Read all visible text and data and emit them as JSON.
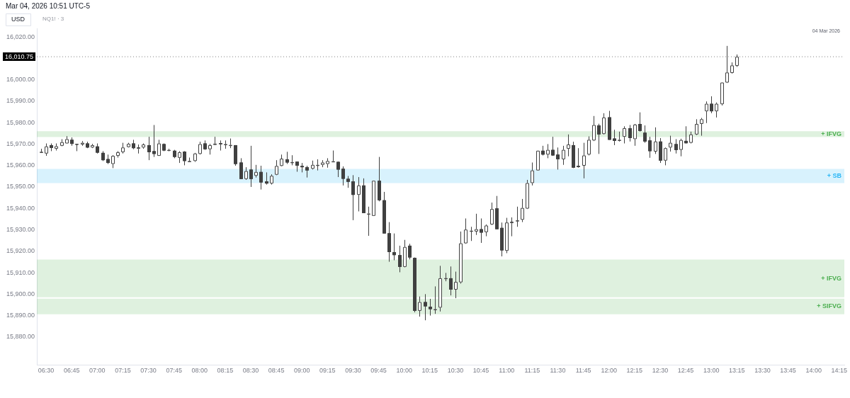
{
  "chart_data": {
    "type": "candlestick",
    "title": "NQ1! · 3",
    "subtitle": "Mar 04, 2026 10:51 UTC-5",
    "color": "#404040",
    "x": [
      6.45,
      6.5,
      6.55,
      6.6,
      6.65,
      6.7,
      6.75,
      6.8,
      6.85,
      6.9,
      6.95,
      7.0,
      7.05,
      7.1,
      7.15,
      7.2,
      7.25,
      7.3,
      7.35,
      7.4,
      7.45,
      7.5,
      7.55,
      7.6,
      7.65,
      7.7,
      7.75,
      7.8,
      7.85,
      7.9,
      7.95,
      8.0,
      8.05,
      8.1,
      8.15,
      8.2,
      8.25,
      8.3,
      8.35,
      8.4,
      8.45,
      8.5,
      8.55,
      8.6,
      8.65,
      8.7,
      8.75,
      8.8,
      8.85,
      8.9,
      8.95,
      9.0,
      9.05,
      9.1,
      9.15,
      9.2,
      9.25,
      9.3,
      9.35,
      9.4,
      9.45,
      9.5,
      9.55,
      9.6,
      9.65,
      9.7,
      9.75,
      9.8,
      9.85,
      9.9,
      9.95,
      10.0,
      10.05,
      10.1,
      10.15,
      10.2,
      10.25,
      10.3,
      10.35,
      10.4,
      10.45,
      10.5,
      10.55,
      10.6,
      10.65,
      10.7,
      10.75,
      10.8,
      10.85,
      10.9,
      10.95,
      11.0,
      11.05,
      11.1,
      11.15,
      11.2,
      11.25,
      11.3,
      11.35,
      11.4,
      11.45,
      11.5,
      11.55,
      11.6,
      11.65,
      11.7,
      11.75,
      11.8,
      11.85,
      11.9,
      11.95,
      12.0,
      12.05,
      12.1,
      12.15,
      12.2,
      12.25,
      12.3,
      12.35,
      12.4,
      12.45,
      12.5,
      12.55,
      12.6,
      12.65,
      12.7,
      12.75,
      12.8,
      12.85,
      12.9,
      12.95,
      13.0,
      13.05,
      13.1,
      13.15,
      13.2,
      13.25
    ],
    "ohlc": [
      [
        15966.4,
        15967.8,
        15965.9,
        15966.4
      ],
      [
        15965.6,
        15970.3,
        15964.5,
        15968.9
      ],
      [
        15969.5,
        15970.3,
        15966.7,
        15968.2
      ],
      [
        15967.8,
        15970.3,
        15967.0,
        15969.0
      ],
      [
        15969.2,
        15972.3,
        15969.0,
        15970.9
      ],
      [
        15970.3,
        15973.7,
        15970.3,
        15972.3
      ],
      [
        15972.0,
        15973.1,
        15969.2,
        15970.1
      ],
      [
        15970.1,
        15970.1,
        15966.7,
        15970.1
      ],
      [
        15969.8,
        15971.4,
        15969.2,
        15970.6
      ],
      [
        15970.3,
        15971.1,
        15968.1,
        15968.4
      ],
      [
        15968.4,
        15970.1,
        15968.1,
        15969.5
      ],
      [
        15968.9,
        15970.3,
        15965.6,
        15966.0
      ],
      [
        15965.9,
        15966.7,
        15962.1,
        15962.5
      ],
      [
        15963.0,
        15965.1,
        15960.7,
        15961.2
      ],
      [
        15960.7,
        15964.8,
        15958.8,
        15964.5
      ],
      [
        15964.5,
        15966.7,
        15963.7,
        15966.2
      ],
      [
        15966.2,
        15970.6,
        15965.6,
        15968.4
      ],
      [
        15968.6,
        15970.6,
        15968.4,
        15970.1
      ],
      [
        15970.3,
        15972.0,
        15967.6,
        15968.1
      ],
      [
        15967.8,
        15969.8,
        15965.6,
        15968.5
      ],
      [
        15968.4,
        15970.3,
        15967.8,
        15969.8
      ],
      [
        15969.5,
        15973.4,
        15962.5,
        15966.2
      ],
      [
        15966.7,
        15978.9,
        15964.0,
        15965.4
      ],
      [
        15964.5,
        15972.0,
        15964.5,
        15970.3
      ],
      [
        15970.0,
        15970.3,
        15966.7,
        15967.0
      ],
      [
        15967.3,
        15967.8,
        15966.7,
        15967.3
      ],
      [
        15966.9,
        15967.3,
        15963.4,
        15964.0
      ],
      [
        15963.6,
        15966.7,
        15961.2,
        15966.2
      ],
      [
        15966.5,
        15966.7,
        15960.1,
        15962.1
      ],
      [
        15962.1,
        15963.7,
        15961.8,
        15962.1
      ],
      [
        15962.1,
        15965.9,
        15961.7,
        15965.6
      ],
      [
        15965.4,
        15971.1,
        15965.1,
        15970.0
      ],
      [
        15970.3,
        15971.7,
        15967.3,
        15967.6
      ],
      [
        15967.6,
        15970.1,
        15965.1,
        15969.5
      ],
      [
        15969.6,
        15973.4,
        15969.5,
        15970.2
      ],
      [
        15970.4,
        15971.7,
        15967.0,
        15970.0
      ],
      [
        15970.0,
        15971.7,
        15967.8,
        15970.0
      ],
      [
        15969.6,
        15972.6,
        15968.1,
        15969.6
      ],
      [
        15969.5,
        15969.5,
        15959.9,
        15960.7
      ],
      [
        15961.4,
        15963.4,
        15953.7,
        15953.7
      ],
      [
        15953.7,
        15959.2,
        15953.3,
        15957.4
      ],
      [
        15958.1,
        15969.2,
        15950.0,
        15953.7
      ],
      [
        15955.2,
        15960.3,
        15954.4,
        15957.0
      ],
      [
        15957.0,
        15959.9,
        15948.8,
        15952.1
      ],
      [
        15952.6,
        15956.8,
        15951.1,
        15951.6
      ],
      [
        15951.6,
        15955.9,
        15951.1,
        15955.2
      ],
      [
        15955.7,
        15962.5,
        15955.5,
        15959.8
      ],
      [
        15959.8,
        15965.1,
        15959.6,
        15963.2
      ],
      [
        15962.9,
        15966.4,
        15960.7,
        15961.4
      ],
      [
        15961.6,
        15964.8,
        15960.1,
        15961.6
      ],
      [
        15961.8,
        15961.8,
        15957.1,
        15959.9
      ],
      [
        15959.8,
        15961.2,
        15956.8,
        15959.2
      ],
      [
        15959.2,
        15959.9,
        15954.4,
        15957.7
      ],
      [
        15958.5,
        15962.3,
        15958.1,
        15960.3
      ],
      [
        15960.3,
        15962.9,
        15957.7,
        15960.3
      ],
      [
        15960.3,
        15962.5,
        15959.2,
        15961.4
      ],
      [
        15960.7,
        15963.4,
        15959.0,
        15962.1
      ],
      [
        15962.0,
        15967.0,
        15961.8,
        15962.0
      ],
      [
        15961.7,
        15961.8,
        15954.6,
        15958.1
      ],
      [
        15958.5,
        15959.6,
        15950.7,
        15953.8
      ],
      [
        15953.8,
        15955.1,
        15949.6,
        15952.4
      ],
      [
        15952.6,
        15955.5,
        15934.5,
        15946.3
      ],
      [
        15946.3,
        15954.6,
        15938.6,
        15950.7
      ],
      [
        15950.7,
        15954.0,
        15937.8,
        15937.8
      ],
      [
        15937.6,
        15940.8,
        15927.2,
        15937.6
      ],
      [
        15936.5,
        15952.9,
        15936.5,
        15952.9
      ],
      [
        15952.9,
        15964.0,
        15943.3,
        15943.8
      ],
      [
        15943.8,
        15947.7,
        15928.3,
        15928.3
      ],
      [
        15928.4,
        15933.6,
        15915.1,
        15919.6
      ],
      [
        15919.6,
        15928.3,
        15915.8,
        15918.2
      ],
      [
        15918.2,
        15922.6,
        15910.2,
        15912.7
      ],
      [
        15912.7,
        15925.3,
        15912.5,
        15922.0
      ],
      [
        15922.6,
        15923.5,
        15916.2,
        15917.1
      ],
      [
        15916.9,
        15917.1,
        15891.5,
        15892.2
      ],
      [
        15892.2,
        15898.9,
        15889.5,
        15896.3
      ],
      [
        15896.3,
        15900.0,
        15887.8,
        15894.3
      ],
      [
        15894.1,
        15897.8,
        15890.0,
        15893.0
      ],
      [
        15893.0,
        15903.6,
        15890.8,
        15893.0
      ],
      [
        15893.7,
        15913.2,
        15891.9,
        15907.4
      ],
      [
        15907.5,
        15909.9,
        15906.0,
        15907.5
      ],
      [
        15907.4,
        15912.9,
        15899.4,
        15902.1
      ],
      [
        15902.1,
        15910.5,
        15898.1,
        15905.7
      ],
      [
        15905.5,
        15929.2,
        15904.9,
        15923.7
      ],
      [
        15923.7,
        15935.3,
        15923.5,
        15930.1
      ],
      [
        15929.6,
        15931.4,
        15924.8,
        15929.6
      ],
      [
        15929.2,
        15937.5,
        15927.6,
        15930.3
      ],
      [
        15930.3,
        15935.3,
        15923.9,
        15928.7
      ],
      [
        15928.9,
        15932.5,
        15927.0,
        15932.0
      ],
      [
        15932.5,
        15942.7,
        15932.3,
        15939.7
      ],
      [
        15940.0,
        15945.8,
        15930.3,
        15930.3
      ],
      [
        15930.9,
        15933.4,
        15917.6,
        15920.4
      ],
      [
        15920.2,
        15935.6,
        15919.1,
        15933.4
      ],
      [
        15933.1,
        15935.8,
        15927.0,
        15933.8
      ],
      [
        15934.4,
        15940.8,
        15931.4,
        15934.4
      ],
      [
        15934.7,
        15944.4,
        15933.6,
        15940.2
      ],
      [
        15939.9,
        15953.3,
        15939.7,
        15951.8
      ],
      [
        15951.8,
        15961.4,
        15950.7,
        15957.7
      ],
      [
        15957.7,
        15966.9,
        15957.7,
        15966.9
      ],
      [
        15966.9,
        15969.2,
        15964.7,
        15965.1
      ],
      [
        15965.1,
        15970.0,
        15963.4,
        15967.3
      ],
      [
        15967.3,
        15973.4,
        15964.5,
        15964.7
      ],
      [
        15965.1,
        15968.4,
        15958.1,
        15962.9
      ],
      [
        15962.9,
        15969.2,
        15960.3,
        15967.3
      ],
      [
        15967.8,
        15974.5,
        15964.3,
        15969.8
      ],
      [
        15969.5,
        15971.1,
        15958.8,
        15959.0
      ],
      [
        15959.8,
        15968.1,
        15959.0,
        15959.3
      ],
      [
        15959.9,
        15970.6,
        15954.0,
        15964.7
      ],
      [
        15965.1,
        15973.6,
        15964.7,
        15972.0
      ],
      [
        15971.7,
        15983.1,
        15971.4,
        15978.9
      ],
      [
        15978.7,
        15979.5,
        15965.4,
        15974.5
      ],
      [
        15974.7,
        15984.4,
        15974.5,
        15982.4
      ],
      [
        15982.5,
        15985.5,
        15972.0,
        15972.0
      ],
      [
        15972.6,
        15976.7,
        15969.5,
        15971.5
      ],
      [
        15972.0,
        15975.8,
        15971.2,
        15972.0
      ],
      [
        15973.4,
        15978.3,
        15970.3,
        15977.4
      ],
      [
        15977.4,
        15978.9,
        15971.2,
        15972.8
      ],
      [
        15972.3,
        15979.4,
        15969.2,
        15979.1
      ],
      [
        15979.4,
        15984.8,
        15975.8,
        15976.1
      ],
      [
        15975.3,
        15978.7,
        15970.6,
        15971.2
      ],
      [
        15971.7,
        15973.4,
        15963.6,
        15966.7
      ],
      [
        15966.5,
        15977.8,
        15965.4,
        15971.2
      ],
      [
        15971.2,
        15972.8,
        15961.2,
        15962.3
      ],
      [
        15962.3,
        15968.4,
        15960.1,
        15968.1
      ],
      [
        15968.4,
        15973.9,
        15966.5,
        15970.6
      ],
      [
        15970.0,
        15972.3,
        15965.6,
        15967.2
      ],
      [
        15967.3,
        15972.5,
        15964.3,
        15971.9
      ],
      [
        15971.5,
        15978.3,
        15970.3,
        15970.4
      ],
      [
        15970.6,
        15975.8,
        15970.3,
        15974.5
      ],
      [
        15974.5,
        15981.6,
        15974.2,
        15979.4
      ],
      [
        15979.4,
        15982.2,
        15973.9,
        15981.6
      ],
      [
        15985.3,
        15989.9,
        15979.8,
        15988.8
      ],
      [
        15988.8,
        15992.3,
        15984.4,
        15985.3
      ],
      [
        15985.3,
        15989.4,
        15982.4,
        15988.8
      ],
      [
        15988.6,
        15998.7,
        15988.0,
        15998.7
      ],
      [
        15998.7,
        16015.8,
        15998.5,
        16003.4
      ],
      [
        16003.2,
        16008.1,
        16002.9,
        16006.7
      ],
      [
        16006.5,
        16011.8,
        16006.0,
        16010.75
      ]
    ],
    "xlim": [
      6.41,
      14.3
    ],
    "ylim": [
      15867,
      16024
    ],
    "xticks": [
      {
        "value": 6.5,
        "label": "06:30"
      },
      {
        "value": 6.75,
        "label": "06:45"
      },
      {
        "value": 7,
        "label": "07:00"
      },
      {
        "value": 7.25,
        "label": "07:15"
      },
      {
        "value": 7.5,
        "label": "07:30"
      },
      {
        "value": 7.75,
        "label": "07:45"
      },
      {
        "value": 8,
        "label": "08:00"
      },
      {
        "value": 8.25,
        "label": "08:15"
      },
      {
        "value": 8.5,
        "label": "08:30"
      },
      {
        "value": 8.75,
        "label": "08:45"
      },
      {
        "value": 9,
        "label": "09:00"
      },
      {
        "value": 9.25,
        "label": "09:15"
      },
      {
        "value": 9.5,
        "label": "09:30"
      },
      {
        "value": 9.75,
        "label": "09:45"
      },
      {
        "value": 10,
        "label": "10:00"
      },
      {
        "value": 10.25,
        "label": "10:15"
      },
      {
        "value": 10.5,
        "label": "10:30"
      },
      {
        "value": 10.75,
        "label": "10:45"
      },
      {
        "value": 11,
        "label": "11:00"
      },
      {
        "value": 11.25,
        "label": "11:15"
      },
      {
        "value": 11.5,
        "label": "11:30"
      },
      {
        "value": 11.75,
        "label": "11:45"
      },
      {
        "value": 12,
        "label": "12:00"
      },
      {
        "value": 12.25,
        "label": "12:15"
      },
      {
        "value": 12.5,
        "label": "12:30"
      },
      {
        "value": 12.75,
        "label": "12:45"
      },
      {
        "value": 13,
        "label": "13:00"
      },
      {
        "value": 13.25,
        "label": "13:15"
      },
      {
        "value": 13.5,
        "label": "13:30"
      },
      {
        "value": 13.75,
        "label": "13:45"
      },
      {
        "value": 14,
        "label": "14:00"
      },
      {
        "value": 14.25,
        "label": "14:15"
      }
    ],
    "yticks": [
      {
        "value": 15880,
        "label": "15,880.00"
      },
      {
        "value": 15890,
        "label": "15,890.00"
      },
      {
        "value": 15900,
        "label": "15,900.00"
      },
      {
        "value": 15910,
        "label": "15,910.00"
      },
      {
        "value": 15920,
        "label": "15,920.00"
      },
      {
        "value": 15930,
        "label": "15,930.00"
      },
      {
        "value": 15940,
        "label": "15,940.00"
      },
      {
        "value": 15950,
        "label": "15,950.00"
      },
      {
        "value": 15960,
        "label": "15,960.00"
      },
      {
        "value": 15970,
        "label": "15,970.00"
      },
      {
        "value": 15980,
        "label": "15,980.00"
      },
      {
        "value": 15990,
        "label": "15,990.00"
      },
      {
        "value": 16000,
        "label": "16,000.00"
      },
      {
        "value": 16020,
        "label": "16,020.00"
      }
    ],
    "ref_lines": [
      {
        "axis": "y",
        "value": 16010.75,
        "label": "16,010.75",
        "color": "#000000",
        "line_style": "dotted"
      }
    ],
    "bands": [
      {
        "axis": "y",
        "from": 15890.6,
        "to": 15897.9,
        "label": "+ SIFVG",
        "color": "#4caf50"
      },
      {
        "axis": "y",
        "from": 15898.5,
        "to": 15916.1,
        "label": "+ IFVG",
        "color": "#4caf50"
      },
      {
        "axis": "y",
        "from": 15951.8,
        "to": 15958.4,
        "label": "+ SB",
        "color": "#29b6f6"
      },
      {
        "axis": "y",
        "from": 15973.3,
        "to": 15976.0,
        "label": "+ IFVG",
        "color": "#4caf50"
      }
    ],
    "colors": [
      "#ffffff",
      "#ffffff",
      "#404040",
      "#ffffff",
      "#ffffff",
      "#ffffff",
      "#404040",
      "#ffffff",
      "#ffffff",
      "#404040",
      "#ffffff",
      "#404040",
      "#404040",
      "#404040",
      "#ffffff",
      "#ffffff",
      "#ffffff",
      "#ffffff",
      "#404040",
      "#ffffff",
      "#ffffff",
      "#404040",
      "#404040",
      "#ffffff",
      "#404040",
      "#ffffff",
      "#404040",
      "#ffffff",
      "#404040",
      "#ffffff",
      "#ffffff",
      "#ffffff",
      "#404040",
      "#ffffff",
      "#ffffff",
      "#404040",
      "#ffffff",
      "#ffffff",
      "#404040",
      "#404040",
      "#ffffff",
      "#404040",
      "#ffffff",
      "#404040",
      "#404040",
      "#ffffff",
      "#ffffff",
      "#ffffff",
      "#404040",
      "#ffffff",
      "#404040",
      "#404040",
      "#404040",
      "#ffffff",
      "#ffffff",
      "#ffffff",
      "#ffffff",
      "#ffffff",
      "#404040",
      "#404040",
      "#404040",
      "#404040",
      "#ffffff",
      "#404040",
      "#ffffff",
      "#ffffff",
      "#404040",
      "#404040",
      "#404040",
      "#404040",
      "#404040",
      "#ffffff",
      "#404040",
      "#404040",
      "#ffffff",
      "#404040",
      "#404040",
      "#ffffff",
      "#ffffff",
      "#ffffff",
      "#404040",
      "#ffffff",
      "#ffffff",
      "#ffffff",
      "#ffffff",
      "#ffffff",
      "#404040",
      "#ffffff",
      "#ffffff",
      "#404040",
      "#404040",
      "#ffffff",
      "#ffffff",
      "#ffffff",
      "#ffffff",
      "#ffffff",
      "#ffffff",
      "#ffffff",
      "#404040",
      "#ffffff",
      "#404040",
      "#404040",
      "#ffffff",
      "#ffffff",
      "#404040",
      "#404040",
      "#ffffff",
      "#ffffff",
      "#ffffff",
      "#404040",
      "#ffffff",
      "#404040",
      "#404040",
      "#ffffff",
      "#ffffff",
      "#404040",
      "#ffffff",
      "#404040",
      "#404040",
      "#404040",
      "#ffffff",
      "#404040",
      "#ffffff",
      "#ffffff",
      "#404040",
      "#ffffff",
      "#404040",
      "#ffffff",
      "#ffffff",
      "#ffffff",
      "#ffffff",
      "#404040",
      "#ffffff",
      "#ffffff",
      "#ffffff",
      "#ffffff",
      "#ffffff"
    ],
    "annotations": [
      "USD",
      "04 Mar 2026"
    ]
  }
}
